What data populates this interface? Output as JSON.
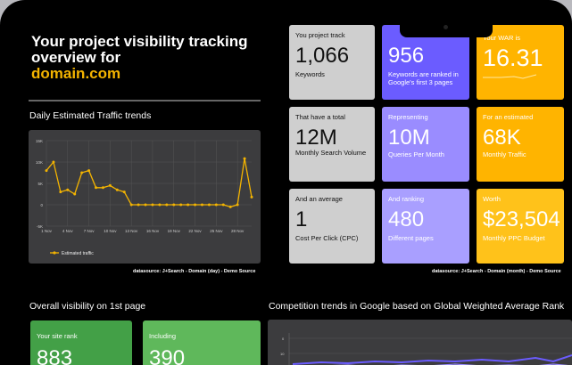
{
  "header": {
    "title_line1": "Your project visibility tracking",
    "title_line2": "overview for",
    "domain": "domain.com"
  },
  "traffic": {
    "section_title": "Daily Estimated Traffic trends",
    "datasource": "datasource: J+Search - Domain (day) - Demo Source"
  },
  "metrics_source": "datasource: J+Search - Domain (month) - Demo Source",
  "cards": [
    {
      "label": "You project track",
      "value": "1,066",
      "sub": "Keywords"
    },
    {
      "label": "",
      "value": "956",
      "sub": "Keywords are ranked in Google's first 3 pages"
    },
    {
      "label": "Your WAR is",
      "value": "16.31",
      "sub": ""
    },
    {
      "label": "That have a total",
      "value": "12M",
      "sub": "Monthly Search Volume"
    },
    {
      "label": "Representing",
      "value": "10M",
      "sub": "Queries Per Month"
    },
    {
      "label": "For an estimated",
      "value": "68K",
      "sub": "Monthly Traffic"
    },
    {
      "label": "And an average",
      "value": "1",
      "sub": "Cost Per Click (CPC)"
    },
    {
      "label": "And ranking",
      "value": "480",
      "sub": "Different pages"
    },
    {
      "label": "Worth",
      "value": "$23,504",
      "sub": "Monthly PPC Budget"
    }
  ],
  "visibility": {
    "section_title": "Overall visibility on 1st page",
    "rank_label": "Your site rank",
    "rank_value": "883",
    "including_label": "Including",
    "including_value": "390"
  },
  "competition": {
    "section_title": "Competition trends in Google based on Global Weighted Average Rank",
    "y_ticks": [
      "0",
      "10"
    ]
  },
  "chart_data": {
    "type": "line",
    "x": [
      "1 Nov",
      "2 Nov",
      "3 Nov",
      "4 Nov",
      "5 Nov",
      "6 Nov",
      "7 Nov",
      "8 Nov",
      "9 Nov",
      "10 Nov",
      "11 Nov",
      "12 Nov",
      "13 Nov",
      "14 Nov",
      "15 Nov",
      "16 Nov",
      "17 Nov",
      "18 Nov",
      "19 Nov",
      "20 Nov",
      "21 Nov",
      "22 Nov",
      "23 Nov",
      "24 Nov",
      "25 Nov",
      "26 Nov",
      "27 Nov",
      "28 Nov",
      "29 Nov",
      "30 Nov"
    ],
    "x_tick_labels": [
      "1 Nov",
      "4 Nov",
      "7 Nov",
      "10 Nov",
      "13 Nov",
      "16 Nov",
      "19 Nov",
      "22 Nov",
      "25 Nov",
      "28 Nov"
    ],
    "y_ticks": [
      "15K",
      "10K",
      "5K",
      "0",
      "-5K"
    ],
    "ylim": [
      -5000,
      15000
    ],
    "series": [
      {
        "name": "Estimated traffic",
        "color": "#f4b400",
        "values": [
          8000,
          10000,
          3000,
          3500,
          2500,
          7500,
          8000,
          4000,
          4000,
          4500,
          3500,
          3000,
          0,
          0,
          0,
          0,
          0,
          0,
          0,
          0,
          0,
          0,
          0,
          0,
          0,
          0,
          -500,
          0,
          10800,
          1800
        ]
      }
    ],
    "legend": "bottom-left",
    "grid": true
  }
}
